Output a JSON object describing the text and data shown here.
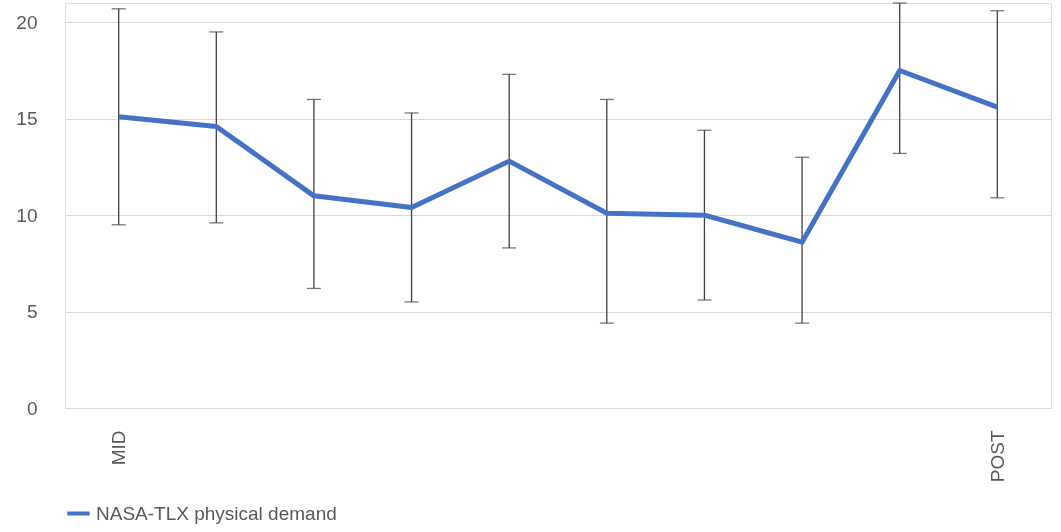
{
  "chart_data": {
    "type": "line",
    "categories": [
      "MID",
      null,
      null,
      null,
      null,
      null,
      null,
      null,
      null,
      "POST"
    ],
    "series": [
      {
        "name": "NASA-TLX physical demand",
        "color": "#4472c4",
        "values": [
          15.1,
          14.6,
          11.0,
          10.4,
          12.8,
          10.1,
          10.0,
          8.6,
          17.5,
          15.6
        ],
        "errors": [
          [
            9.5,
            20.7
          ],
          [
            9.6,
            19.5
          ],
          [
            6.2,
            16.0
          ],
          [
            5.5,
            15.3
          ],
          [
            8.3,
            17.3
          ],
          [
            4.4,
            16.0
          ],
          [
            5.6,
            14.4
          ],
          [
            4.4,
            13.0
          ],
          [
            13.2,
            21
          ],
          [
            10.9,
            20.6
          ]
        ]
      }
    ],
    "ylim": [
      0,
      21
    ],
    "yticks": [
      0,
      5,
      10,
      15,
      20
    ],
    "grid": "y",
    "legend": "bottom",
    "marker": "none",
    "line_style": "solid"
  }
}
